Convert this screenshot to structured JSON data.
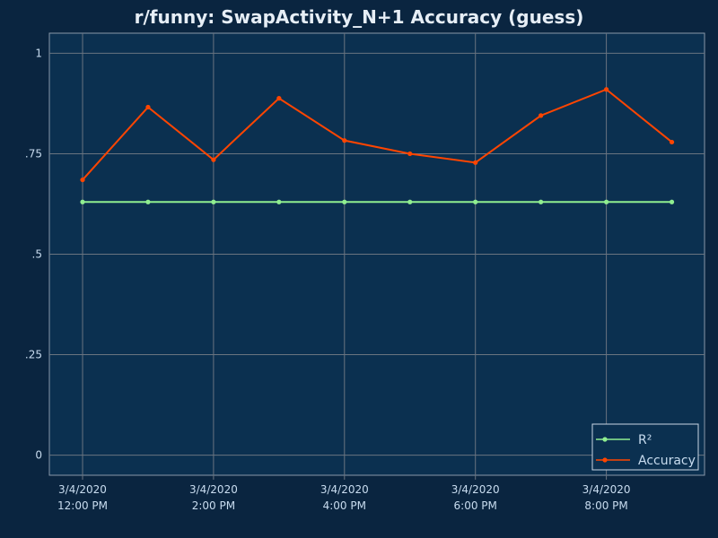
{
  "chart_data": {
    "type": "line",
    "title": "r/funny: SwapActivity_N+1 Accuracy (guess)",
    "xlabel": "",
    "ylabel": "",
    "ylim": [
      -0.05,
      1.05
    ],
    "yticks": [
      {
        "value": 1,
        "label": "1"
      },
      {
        "value": 0.75,
        "label": ".75"
      },
      {
        "value": 0.5,
        "label": ".5"
      },
      {
        "value": 0.25,
        "label": ".25"
      },
      {
        "value": 0,
        "label": "0"
      }
    ],
    "x": [
      "3/4/2020 12:00 PM",
      "3/4/2020 1:00 PM",
      "3/4/2020 2:00 PM",
      "3/4/2020 3:00 PM",
      "3/4/2020 4:00 PM",
      "3/4/2020 5:00 PM",
      "3/4/2020 6:00 PM",
      "3/4/2020 7:00 PM",
      "3/4/2020 8:00 PM",
      "3/4/2020 9:00 PM"
    ],
    "xticks": [
      {
        "index": 0,
        "date": "3/4/2020",
        "time": "12:00 PM"
      },
      {
        "index": 2,
        "date": "3/4/2020",
        "time": "2:00 PM"
      },
      {
        "index": 4,
        "date": "3/4/2020",
        "time": "4:00 PM"
      },
      {
        "index": 6,
        "date": "3/4/2020",
        "time": "6:00 PM"
      },
      {
        "index": 8,
        "date": "3/4/2020",
        "time": "8:00 PM"
      }
    ],
    "series": [
      {
        "name": "R²",
        "color": "#90ee90",
        "values": [
          0.63,
          0.63,
          0.63,
          0.63,
          0.63,
          0.63,
          0.63,
          0.63,
          0.63,
          0.63
        ]
      },
      {
        "name": "Accuracy",
        "color": "#ff4500",
        "values": [
          0.685,
          0.866,
          0.735,
          0.888,
          0.783,
          0.75,
          0.728,
          0.845,
          0.91,
          0.779
        ]
      }
    ],
    "grid": true,
    "legend_position": "bottom-right"
  },
  "colors": {
    "background": "#0a2540",
    "plot_background": "#0b3050",
    "grid": "#6a7480",
    "text": "#c8dcef",
    "title": "#e6eef6"
  }
}
